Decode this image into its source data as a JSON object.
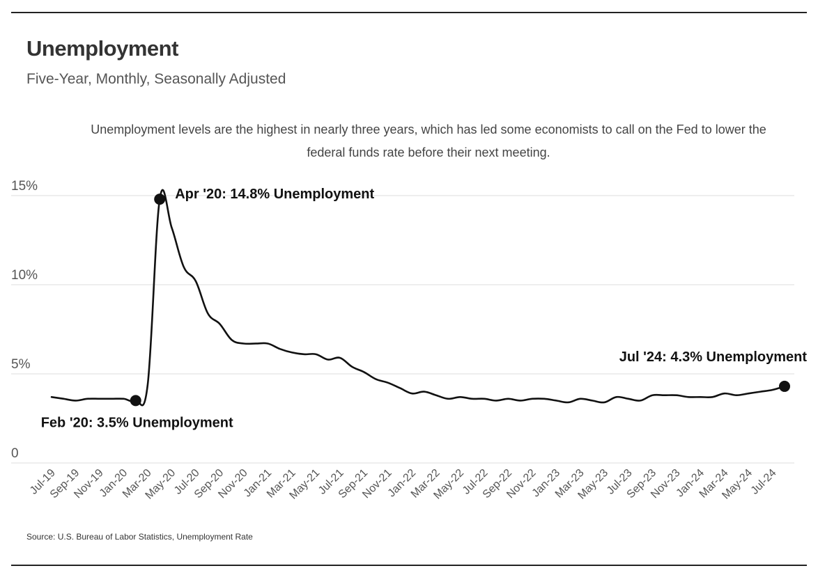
{
  "header": {
    "title": "Unemployment",
    "subtitle": "Five-Year, Monthly, Seasonally Adjusted"
  },
  "description": "Unemployment levels are the highest in nearly three years, which has led some economists to call on the Fed to lower the federal funds rate before their next meeting.",
  "source": "Source:  U.S. Bureau of Labor Statistics, Unemployment Rate",
  "colors": {
    "line": "#111111",
    "grid": "#dddddd",
    "text": "#555555"
  },
  "chart_data": {
    "type": "line",
    "ylim": [
      0,
      15
    ],
    "y_ticks": [
      {
        "value": 0,
        "label": "0"
      },
      {
        "value": 5,
        "label": "5%"
      },
      {
        "value": 10,
        "label": "10%"
      },
      {
        "value": 15,
        "label": "15%"
      }
    ],
    "x_tick_labels": [
      "Jul-19",
      "Sep-19",
      "Nov-19",
      "Jan-20",
      "Mar-20",
      "May-20",
      "Jul-20",
      "Sep-20",
      "Nov-20",
      "Jan-21",
      "Mar-21",
      "May-21",
      "Jul-21",
      "Sep-21",
      "Nov-21",
      "Jan-22",
      "Mar-22",
      "May-22",
      "Jul-22",
      "Sep-22",
      "Nov-22",
      "Jan-23",
      "Mar-23",
      "May-23",
      "Jul-23",
      "Sep-23",
      "Nov-23",
      "Jan-24",
      "Mar-24",
      "May-24",
      "Jul-24"
    ],
    "x_start": "Jul-19",
    "grid": true,
    "values": [
      3.7,
      3.6,
      3.5,
      3.6,
      3.6,
      3.6,
      3.6,
      3.5,
      4.4,
      14.8,
      13.2,
      11.0,
      10.2,
      8.4,
      7.8,
      6.9,
      6.7,
      6.7,
      6.7,
      6.4,
      6.2,
      6.1,
      6.1,
      5.8,
      5.9,
      5.4,
      5.1,
      4.7,
      4.5,
      4.2,
      3.9,
      4.0,
      3.8,
      3.6,
      3.7,
      3.6,
      3.6,
      3.5,
      3.6,
      3.5,
      3.6,
      3.6,
      3.5,
      3.4,
      3.6,
      3.5,
      3.4,
      3.7,
      3.6,
      3.5,
      3.8,
      3.8,
      3.8,
      3.7,
      3.7,
      3.7,
      3.9,
      3.8,
      3.9,
      4.0,
      4.1,
      4.3
    ],
    "annotations": [
      {
        "index": 7,
        "text": "Feb '20: 3.5% Unemployment",
        "position": "below"
      },
      {
        "index": 9,
        "text": "Apr '20: 14.8% Unemployment",
        "position": "right"
      },
      {
        "index": 61,
        "text": "Jul '24: 4.3% Unemployment",
        "position": "above-left"
      }
    ]
  }
}
